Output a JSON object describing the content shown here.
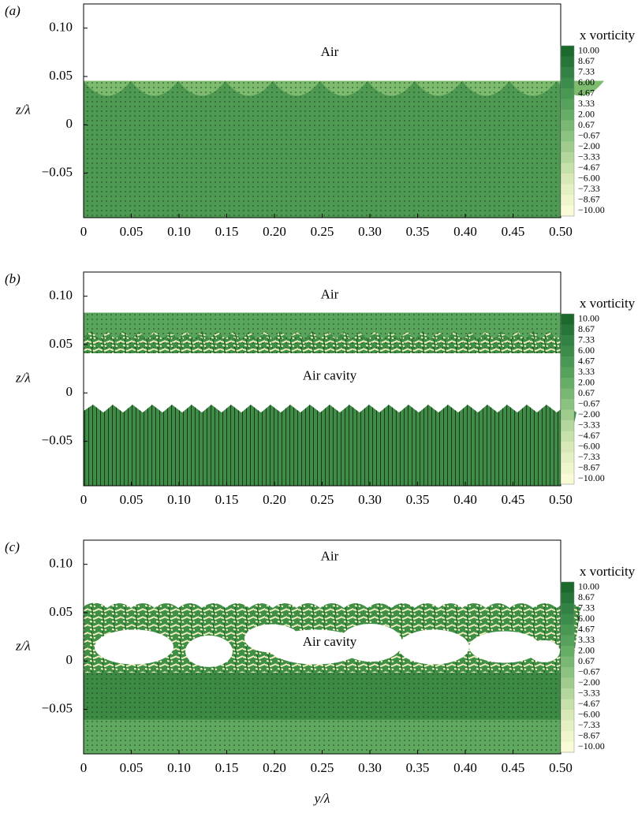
{
  "chart_data": [
    {
      "type": "field",
      "panel_label": "(a)",
      "ylabel": "z/λ",
      "annotations": [
        "Air"
      ],
      "xlim": [
        0,
        0.5
      ],
      "ylim": [
        -0.096,
        0.125
      ],
      "xticks": [
        0,
        0.05,
        {
          "value": 0.1,
          "label": "0.10"
        },
        0.15,
        {
          "value": 0.2,
          "label": "0.20"
        },
        0.25,
        {
          "value": 0.3,
          "label": "0.30"
        },
        0.35,
        {
          "value": 0.4,
          "label": "0.40"
        },
        0.45,
        {
          "value": 0.5,
          "label": "0.50"
        }
      ],
      "yticks": [
        {
          "value": -0.05,
          "label": "−0.05"
        },
        0,
        0.05,
        {
          "value": 0.1,
          "label": "0.10"
        }
      ]
    },
    {
      "type": "field",
      "panel_label": "(b)",
      "ylabel": "z/λ",
      "annotations": [
        "Air",
        "Air cavity"
      ],
      "xlim": [
        0,
        0.5
      ],
      "ylim": [
        -0.096,
        0.125
      ],
      "xticks": [
        0,
        0.05,
        {
          "value": 0.1,
          "label": "0.10"
        },
        0.15,
        {
          "value": 0.2,
          "label": "0.20"
        },
        0.25,
        {
          "value": 0.3,
          "label": "0.30"
        },
        0.35,
        {
          "value": 0.4,
          "label": "0.40"
        },
        0.45,
        {
          "value": 0.5,
          "label": "0.50"
        }
      ],
      "yticks": [
        {
          "value": -0.05,
          "label": "−0.05"
        },
        0,
        0.05,
        {
          "value": 0.1,
          "label": "0.10"
        }
      ]
    },
    {
      "type": "field",
      "panel_label": "(c)",
      "ylabel": "z/λ",
      "xlabel": "y/λ",
      "annotations": [
        "Air",
        "Air cavity"
      ],
      "xlim": [
        0,
        0.5
      ],
      "ylim": [
        -0.096,
        0.125
      ],
      "xticks": [
        0,
        0.05,
        {
          "value": 0.1,
          "label": "0.10"
        },
        0.15,
        {
          "value": 0.2,
          "label": "0.20"
        },
        0.25,
        {
          "value": 0.3,
          "label": "0.30"
        },
        0.35,
        {
          "value": 0.4,
          "label": "0.40"
        },
        0.45,
        {
          "value": 0.5,
          "label": "0.50"
        }
      ],
      "yticks": [
        {
          "value": -0.05,
          "label": "−0.05"
        },
        0,
        0.05,
        {
          "value": 0.1,
          "label": "0.10"
        }
      ]
    }
  ],
  "colorbar": {
    "title": "x vorticity",
    "ticks": [
      {
        "value": 10,
        "label": "10.00"
      },
      {
        "value": 8.67,
        "label": "8.67"
      },
      {
        "value": 7.33,
        "label": "7.33"
      },
      {
        "value": 6,
        "label": "6.00"
      },
      {
        "value": 4.67,
        "label": "4.67"
      },
      {
        "value": 3.33,
        "label": "3.33"
      },
      {
        "value": 2,
        "label": "2.00"
      },
      {
        "value": 0.67,
        "label": "0.67"
      },
      {
        "value": -0.67,
        "label": "−0.67"
      },
      {
        "value": -2,
        "label": "−2.00"
      },
      {
        "value": -3.33,
        "label": "−3.33"
      },
      {
        "value": -4.67,
        "label": "−4.67"
      },
      {
        "value": -6,
        "label": "−6.00"
      },
      {
        "value": -7.33,
        "label": "−7.33"
      },
      {
        "value": -8.67,
        "label": "−8.67"
      },
      {
        "value": -10,
        "label": "−10.00"
      }
    ],
    "colors": [
      "#1b6a2c",
      "#26763a",
      "#318243",
      "#3c8d4b",
      "#489853",
      "#56a25c",
      "#66ad66",
      "#78b872",
      "#8bc27f",
      "#9fcc8d",
      "#b3d69c",
      "#c6e0aa",
      "#d6e9b6",
      "#e4f0c2",
      "#eff6cc",
      "#f8fbd6"
    ]
  }
}
